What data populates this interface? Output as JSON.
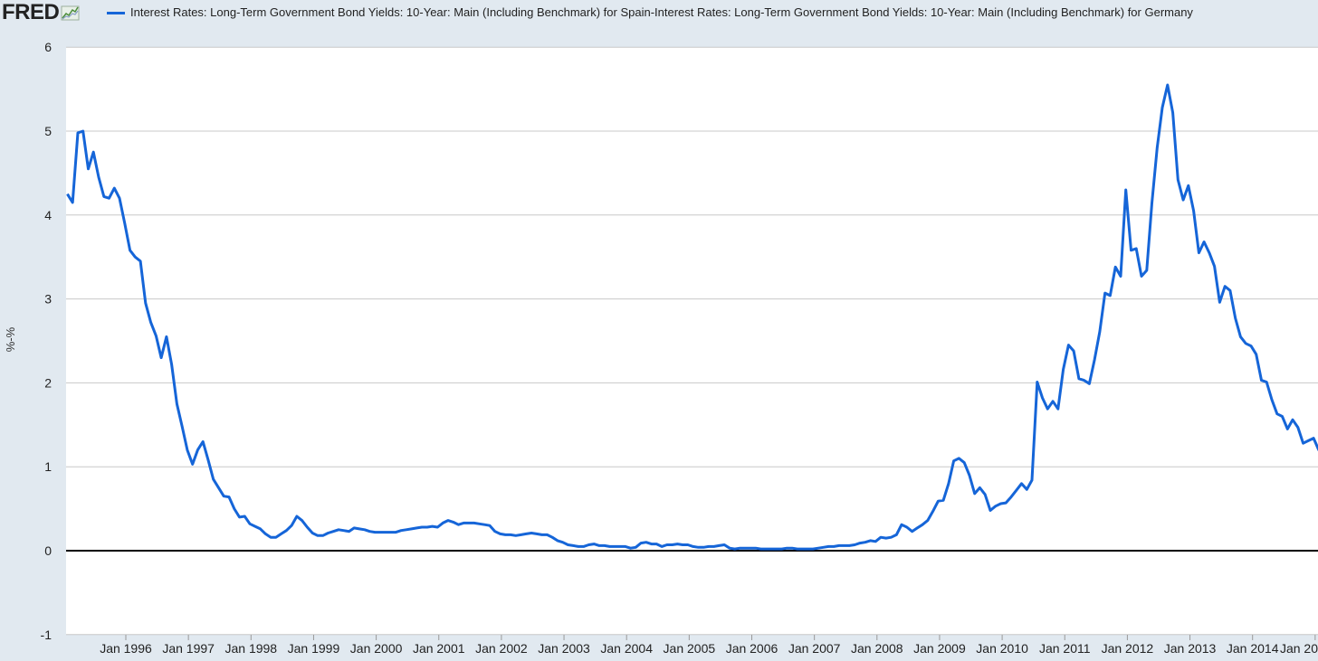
{
  "brand": {
    "logo_text": "FRED",
    "logo_icon": "chart-line-icon"
  },
  "colors": {
    "series": "#1565d8",
    "background": "#e1e9f0",
    "plot": "#ffffff",
    "grid": "#c8c8c8",
    "zero_line": "#000000"
  },
  "chart_data": {
    "type": "line",
    "series": [
      {
        "name": "Interest Rates: Long-Term Government Bond Yields: 10-Year: Main (Including Benchmark) for Spain-Interest Rates: Long-Term Government Bond Yields: 10-Year: Main (Including Benchmark) for Germany"
      }
    ],
    "ylabel": "%-%",
    "ylim": [
      -1,
      6
    ],
    "yticks": [
      "-1",
      "0",
      "1",
      "2",
      "3",
      "4",
      "5",
      "6"
    ],
    "xlim": [
      "1995-01",
      "2015-01"
    ],
    "xticks": [
      "Jan 1996",
      "Jan 1997",
      "Jan 1998",
      "Jan 1999",
      "Jan 2000",
      "Jan 2001",
      "Jan 2002",
      "Jan 2003",
      "Jan 2004",
      "Jan 2005",
      "Jan 2006",
      "Jan 2007",
      "Jan 2008",
      "Jan 2009",
      "Jan 2010",
      "Jan 2011",
      "Jan 2012",
      "Jan 2013",
      "Jan 2014",
      "Jan 20"
    ],
    "grid": true,
    "points": [
      [
        "1995-01",
        4.25
      ],
      [
        "1995-02",
        4.15
      ],
      [
        "1995-03",
        4.98
      ],
      [
        "1995-04",
        5.0
      ],
      [
        "1995-05",
        4.55
      ],
      [
        "1995-06",
        4.75
      ],
      [
        "1995-07",
        4.45
      ],
      [
        "1995-08",
        4.22
      ],
      [
        "1995-09",
        4.2
      ],
      [
        "1995-10",
        4.32
      ],
      [
        "1995-11",
        4.2
      ],
      [
        "1995-12",
        3.9
      ],
      [
        "1996-01",
        3.58
      ],
      [
        "1996-02",
        3.5
      ],
      [
        "1996-03",
        3.45
      ],
      [
        "1996-04",
        2.95
      ],
      [
        "1996-05",
        2.72
      ],
      [
        "1996-06",
        2.56
      ],
      [
        "1996-07",
        2.3
      ],
      [
        "1996-08",
        2.55
      ],
      [
        "1996-09",
        2.22
      ],
      [
        "1996-10",
        1.75
      ],
      [
        "1996-11",
        1.48
      ],
      [
        "1996-12",
        1.2
      ],
      [
        "1997-01",
        1.03
      ],
      [
        "1997-02",
        1.2
      ],
      [
        "1997-03",
        1.3
      ],
      [
        "1997-04",
        1.08
      ],
      [
        "1997-05",
        0.85
      ],
      [
        "1997-06",
        0.75
      ],
      [
        "1997-07",
        0.65
      ],
      [
        "1997-08",
        0.64
      ],
      [
        "1997-09",
        0.5
      ],
      [
        "1997-10",
        0.4
      ],
      [
        "1997-11",
        0.41
      ],
      [
        "1997-12",
        0.32
      ],
      [
        "1998-01",
        0.29
      ],
      [
        "1998-02",
        0.26
      ],
      [
        "1998-03",
        0.2
      ],
      [
        "1998-04",
        0.16
      ],
      [
        "1998-05",
        0.16
      ],
      [
        "1998-06",
        0.2
      ],
      [
        "1998-07",
        0.24
      ],
      [
        "1998-08",
        0.3
      ],
      [
        "1998-09",
        0.41
      ],
      [
        "1998-10",
        0.36
      ],
      [
        "1998-11",
        0.28
      ],
      [
        "1998-12",
        0.21
      ],
      [
        "1999-01",
        0.18
      ],
      [
        "1999-02",
        0.18
      ],
      [
        "1999-03",
        0.21
      ],
      [
        "1999-04",
        0.23
      ],
      [
        "1999-05",
        0.25
      ],
      [
        "1999-06",
        0.24
      ],
      [
        "1999-07",
        0.23
      ],
      [
        "1999-08",
        0.27
      ],
      [
        "1999-09",
        0.26
      ],
      [
        "1999-10",
        0.25
      ],
      [
        "1999-11",
        0.23
      ],
      [
        "1999-12",
        0.22
      ],
      [
        "2000-01",
        0.22
      ],
      [
        "2000-02",
        0.22
      ],
      [
        "2000-03",
        0.22
      ],
      [
        "2000-04",
        0.22
      ],
      [
        "2000-05",
        0.24
      ],
      [
        "2000-06",
        0.25
      ],
      [
        "2000-07",
        0.26
      ],
      [
        "2000-08",
        0.27
      ],
      [
        "2000-09",
        0.28
      ],
      [
        "2000-10",
        0.28
      ],
      [
        "2000-11",
        0.29
      ],
      [
        "2000-12",
        0.28
      ],
      [
        "2001-01",
        0.33
      ],
      [
        "2001-02",
        0.36
      ],
      [
        "2001-03",
        0.34
      ],
      [
        "2001-04",
        0.31
      ],
      [
        "2001-05",
        0.33
      ],
      [
        "2001-06",
        0.33
      ],
      [
        "2001-07",
        0.33
      ],
      [
        "2001-08",
        0.32
      ],
      [
        "2001-09",
        0.31
      ],
      [
        "2001-10",
        0.3
      ],
      [
        "2001-11",
        0.23
      ],
      [
        "2001-12",
        0.2
      ],
      [
        "2002-01",
        0.19
      ],
      [
        "2002-02",
        0.19
      ],
      [
        "2002-03",
        0.18
      ],
      [
        "2002-04",
        0.19
      ],
      [
        "2002-05",
        0.2
      ],
      [
        "2002-06",
        0.21
      ],
      [
        "2002-07",
        0.2
      ],
      [
        "2002-08",
        0.19
      ],
      [
        "2002-09",
        0.19
      ],
      [
        "2002-10",
        0.16
      ],
      [
        "2002-11",
        0.12
      ],
      [
        "2002-12",
        0.1
      ],
      [
        "2003-01",
        0.07
      ],
      [
        "2003-02",
        0.06
      ],
      [
        "2003-03",
        0.05
      ],
      [
        "2003-04",
        0.05
      ],
      [
        "2003-05",
        0.07
      ],
      [
        "2003-06",
        0.08
      ],
      [
        "2003-07",
        0.06
      ],
      [
        "2003-08",
        0.06
      ],
      [
        "2003-09",
        0.05
      ],
      [
        "2003-10",
        0.05
      ],
      [
        "2003-11",
        0.05
      ],
      [
        "2003-12",
        0.05
      ],
      [
        "2004-01",
        0.03
      ],
      [
        "2004-02",
        0.04
      ],
      [
        "2004-03",
        0.09
      ],
      [
        "2004-04",
        0.1
      ],
      [
        "2004-05",
        0.08
      ],
      [
        "2004-06",
        0.08
      ],
      [
        "2004-07",
        0.05
      ],
      [
        "2004-08",
        0.07
      ],
      [
        "2004-09",
        0.07
      ],
      [
        "2004-10",
        0.08
      ],
      [
        "2004-11",
        0.07
      ],
      [
        "2004-12",
        0.07
      ],
      [
        "2005-01",
        0.05
      ],
      [
        "2005-02",
        0.04
      ],
      [
        "2005-03",
        0.04
      ],
      [
        "2005-04",
        0.05
      ],
      [
        "2005-05",
        0.05
      ],
      [
        "2005-06",
        0.06
      ],
      [
        "2005-07",
        0.07
      ],
      [
        "2005-08",
        0.03
      ],
      [
        "2005-09",
        0.02
      ],
      [
        "2005-10",
        0.03
      ],
      [
        "2005-11",
        0.03
      ],
      [
        "2005-12",
        0.03
      ],
      [
        "2006-01",
        0.03
      ],
      [
        "2006-02",
        0.02
      ],
      [
        "2006-03",
        0.02
      ],
      [
        "2006-04",
        0.02
      ],
      [
        "2006-05",
        0.02
      ],
      [
        "2006-06",
        0.02
      ],
      [
        "2006-07",
        0.03
      ],
      [
        "2006-08",
        0.03
      ],
      [
        "2006-09",
        0.02
      ],
      [
        "2006-10",
        0.02
      ],
      [
        "2006-11",
        0.02
      ],
      [
        "2006-12",
        0.02
      ],
      [
        "2007-01",
        0.03
      ],
      [
        "2007-02",
        0.04
      ],
      [
        "2007-03",
        0.05
      ],
      [
        "2007-04",
        0.05
      ],
      [
        "2007-05",
        0.06
      ],
      [
        "2007-06",
        0.06
      ],
      [
        "2007-07",
        0.06
      ],
      [
        "2007-08",
        0.07
      ],
      [
        "2007-09",
        0.09
      ],
      [
        "2007-10",
        0.1
      ],
      [
        "2007-11",
        0.12
      ],
      [
        "2007-12",
        0.11
      ],
      [
        "2008-01",
        0.16
      ],
      [
        "2008-02",
        0.15
      ],
      [
        "2008-03",
        0.16
      ],
      [
        "2008-04",
        0.19
      ],
      [
        "2008-05",
        0.31
      ],
      [
        "2008-06",
        0.28
      ],
      [
        "2008-07",
        0.23
      ],
      [
        "2008-08",
        0.27
      ],
      [
        "2008-09",
        0.31
      ],
      [
        "2008-10",
        0.36
      ],
      [
        "2008-11",
        0.47
      ],
      [
        "2008-12",
        0.59
      ],
      [
        "2009-01",
        0.6
      ],
      [
        "2009-02",
        0.8
      ],
      [
        "2009-03",
        1.07
      ],
      [
        "2009-04",
        1.1
      ],
      [
        "2009-05",
        1.05
      ],
      [
        "2009-06",
        0.9
      ],
      [
        "2009-07",
        0.68
      ],
      [
        "2009-08",
        0.75
      ],
      [
        "2009-09",
        0.67
      ],
      [
        "2009-10",
        0.48
      ],
      [
        "2009-11",
        0.53
      ],
      [
        "2009-12",
        0.56
      ],
      [
        "2010-01",
        0.57
      ],
      [
        "2010-02",
        0.64
      ],
      [
        "2010-03",
        0.72
      ],
      [
        "2010-04",
        0.8
      ],
      [
        "2010-05",
        0.73
      ],
      [
        "2010-06",
        0.84
      ],
      [
        "2010-07",
        2.01
      ],
      [
        "2010-08",
        1.82
      ],
      [
        "2010-09",
        1.69
      ],
      [
        "2010-10",
        1.78
      ],
      [
        "2010-11",
        1.69
      ],
      [
        "2010-12",
        2.16
      ],
      [
        "2011-01",
        2.45
      ],
      [
        "2011-02",
        2.38
      ],
      [
        "2011-03",
        2.05
      ],
      [
        "2011-04",
        2.03
      ],
      [
        "2011-05",
        1.99
      ],
      [
        "2011-06",
        2.28
      ],
      [
        "2011-07",
        2.61
      ],
      [
        "2011-08",
        3.07
      ],
      [
        "2011-09",
        3.04
      ],
      [
        "2011-10",
        3.38
      ],
      [
        "2011-11",
        3.27
      ],
      [
        "2011-12",
        4.3
      ],
      [
        "2012-01",
        3.58
      ],
      [
        "2012-02",
        3.6
      ],
      [
        "2012-03",
        3.27
      ],
      [
        "2012-04",
        3.34
      ],
      [
        "2012-05",
        4.14
      ],
      [
        "2012-06",
        4.8
      ],
      [
        "2012-07",
        5.28
      ],
      [
        "2012-08",
        5.55
      ],
      [
        "2012-09",
        5.22
      ],
      [
        "2012-10",
        4.42
      ],
      [
        "2012-11",
        4.18
      ],
      [
        "2012-12",
        4.35
      ],
      [
        "2013-01",
        4.05
      ],
      [
        "2013-02",
        3.55
      ],
      [
        "2013-03",
        3.68
      ],
      [
        "2013-04",
        3.55
      ],
      [
        "2013-05",
        3.39
      ],
      [
        "2013-06",
        2.96
      ],
      [
        "2013-07",
        3.15
      ],
      [
        "2013-08",
        3.1
      ],
      [
        "2013-09",
        2.77
      ],
      [
        "2013-10",
        2.55
      ],
      [
        "2013-11",
        2.47
      ],
      [
        "2013-12",
        2.44
      ],
      [
        "2014-01",
        2.34
      ],
      [
        "2014-02",
        2.03
      ],
      [
        "2014-03",
        2.01
      ],
      [
        "2014-04",
        1.8
      ],
      [
        "2014-05",
        1.63
      ],
      [
        "2014-06",
        1.6
      ],
      [
        "2014-07",
        1.45
      ],
      [
        "2014-08",
        1.56
      ],
      [
        "2014-09",
        1.47
      ],
      [
        "2014-10",
        1.28
      ],
      [
        "2014-11",
        1.31
      ],
      [
        "2014-12",
        1.34
      ],
      [
        "2015-01",
        1.2
      ],
      [
        "2015-02",
        1.15
      ]
    ]
  }
}
